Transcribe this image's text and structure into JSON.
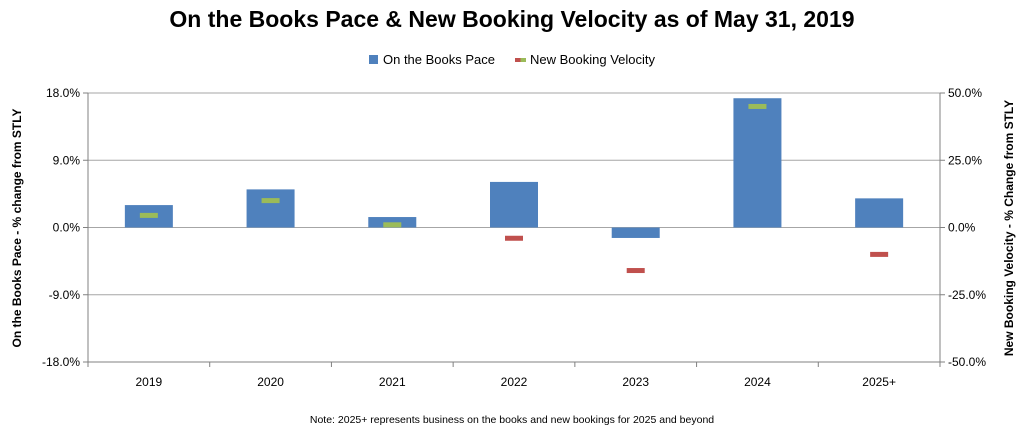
{
  "chart_data": {
    "type": "bar",
    "title": "On the Books Pace & New Booking Velocity as of May 31, 2019",
    "categories": [
      "2019",
      "2020",
      "2021",
      "2022",
      "2023",
      "2024",
      "2025+"
    ],
    "series": [
      {
        "name": "On the Books Pace",
        "type": "bar",
        "axis": "left",
        "color": "#4f81bd",
        "values": [
          3.0,
          5.1,
          1.4,
          6.1,
          -1.4,
          17.3,
          3.9
        ]
      },
      {
        "name": "New Booking Velocity",
        "type": "marker",
        "axis": "right",
        "positive_color": "#9bbb59",
        "negative_color": "#c0504d",
        "values": [
          4.5,
          10.0,
          1.0,
          -4.0,
          -16.0,
          45.0,
          -10.0
        ]
      }
    ],
    "y_left": {
      "label": "On the Books Pace - % change from STLY",
      "ylim": [
        -18,
        18
      ],
      "ticks": [
        "18.0%",
        "9.0%",
        "0.0%",
        "-9.0%",
        "-18.0%"
      ]
    },
    "y_right": {
      "label": "New Booking Velocity - % Change from STLY",
      "ylim": [
        -50,
        50
      ],
      "ticks": [
        "50.0%",
        "25.0%",
        "0.0%",
        "-25.0%",
        "-50.0%"
      ]
    },
    "grid": true,
    "legend_position": "top-center",
    "note": "Note: 2025+ represents business on the books and new bookings for 2025 and beyond"
  }
}
